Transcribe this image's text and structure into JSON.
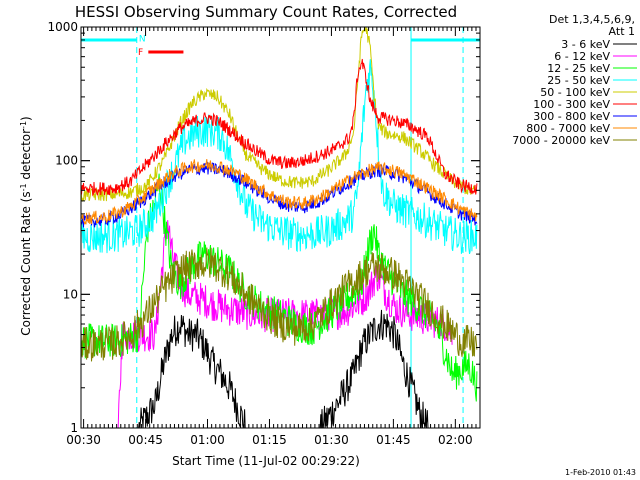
{
  "chart_data": {
    "type": "line",
    "title": "HESSI Observing Summary Count Rates, Corrected",
    "xlabel": "Start Time (11-Jul-02 00:29:22)",
    "ylabel": "Corrected Count Rate (s⁻¹ detector⁻¹)",
    "ylabel_parts": [
      "Corrected Count Rate (s",
      "-1",
      " detector",
      "-1",
      ")"
    ],
    "x_unit": "minutes since 00:29:22",
    "x_range": [
      0,
      96.6
    ],
    "y_scale": "log",
    "y_range": [
      1,
      1000
    ],
    "x_ticks": [
      {
        "label": "00:30",
        "value": 0.63
      },
      {
        "label": "00:45",
        "value": 15.63
      },
      {
        "label": "01:00",
        "value": 30.63
      },
      {
        "label": "01:15",
        "value": 45.63
      },
      {
        "label": "01:30",
        "value": 60.63
      },
      {
        "label": "01:45",
        "value": 75.63
      },
      {
        "label": "02:00",
        "value": 90.63
      }
    ],
    "y_ticks": [
      {
        "label": "1",
        "value": 1
      },
      {
        "label": "10",
        "value": 10
      },
      {
        "label": "100",
        "value": 100
      },
      {
        "label": "1000",
        "value": 1000
      }
    ],
    "legend_header": [
      "Det 1,3,4,5,6,9,",
      "Att 1"
    ],
    "series": [
      {
        "name": "3 - 6 keV",
        "color": "#000000",
        "points": [
          [
            0,
            1
          ],
          [
            10,
            1
          ],
          [
            14,
            1
          ],
          [
            18,
            1.5
          ],
          [
            20,
            3
          ],
          [
            22,
            5
          ],
          [
            24,
            6
          ],
          [
            26,
            5
          ],
          [
            28,
            5
          ],
          [
            30,
            4
          ],
          [
            32,
            3
          ],
          [
            34,
            2.5
          ],
          [
            36,
            2
          ],
          [
            38,
            1.4
          ],
          [
            40,
            1
          ],
          [
            52,
            1
          ],
          [
            58,
            1
          ],
          [
            62,
            1.5
          ],
          [
            66,
            2.5
          ],
          [
            68,
            4
          ],
          [
            70,
            5
          ],
          [
            72,
            6
          ],
          [
            74,
            6
          ],
          [
            76,
            5
          ],
          [
            78,
            3
          ],
          [
            80,
            2
          ],
          [
            82,
            1.3
          ],
          [
            84,
            1
          ],
          [
            96,
            1
          ]
        ]
      },
      {
        "name": "6 - 12 keV",
        "color": "#ff00ff",
        "points": [
          [
            0,
            1
          ],
          [
            9,
            1
          ],
          [
            10,
            5
          ],
          [
            14,
            5
          ],
          [
            18,
            5
          ],
          [
            20,
            20
          ],
          [
            21,
            35
          ],
          [
            22,
            20
          ],
          [
            24,
            12
          ],
          [
            26,
            10
          ],
          [
            30,
            9
          ],
          [
            34,
            8
          ],
          [
            38,
            7.5
          ],
          [
            42,
            7
          ],
          [
            50,
            7
          ],
          [
            58,
            7
          ],
          [
            64,
            7.5
          ],
          [
            68,
            9
          ],
          [
            70,
            11
          ],
          [
            71,
            13
          ],
          [
            72,
            14
          ],
          [
            74,
            10
          ],
          [
            76,
            8
          ],
          [
            80,
            7
          ],
          [
            84,
            6.5
          ],
          [
            88,
            6
          ],
          [
            90,
            5
          ]
        ]
      },
      {
        "name": "12 - 25 keV",
        "color": "#00ff00",
        "points": [
          [
            0,
            4.5
          ],
          [
            10,
            4.5
          ],
          [
            14,
            5
          ],
          [
            16,
            30
          ],
          [
            18,
            50
          ],
          [
            19,
            70
          ],
          [
            20,
            40
          ],
          [
            22,
            15
          ],
          [
            24,
            12
          ],
          [
            28,
            18
          ],
          [
            30,
            20
          ],
          [
            32,
            18
          ],
          [
            36,
            15
          ],
          [
            40,
            10
          ],
          [
            44,
            8
          ],
          [
            48,
            7
          ],
          [
            52,
            6
          ],
          [
            56,
            5.5
          ],
          [
            60,
            7
          ],
          [
            64,
            9
          ],
          [
            68,
            12
          ],
          [
            70,
            25
          ],
          [
            71,
            30
          ],
          [
            72,
            20
          ],
          [
            74,
            15
          ],
          [
            78,
            10
          ],
          [
            82,
            8
          ],
          [
            86,
            6
          ],
          [
            90,
            2.5
          ],
          [
            94,
            3
          ],
          [
            96,
            2
          ]
        ]
      },
      {
        "name": "25 - 50 keV",
        "color": "#00ffff",
        "points": [
          [
            0,
            27
          ],
          [
            5,
            27
          ],
          [
            10,
            28
          ],
          [
            14,
            30
          ],
          [
            18,
            40
          ],
          [
            22,
            80
          ],
          [
            25,
            140
          ],
          [
            28,
            165
          ],
          [
            31,
            170
          ],
          [
            34,
            155
          ],
          [
            36,
            110
          ],
          [
            38,
            70
          ],
          [
            40,
            45
          ],
          [
            44,
            34
          ],
          [
            48,
            30
          ],
          [
            52,
            28
          ],
          [
            56,
            28
          ],
          [
            60,
            30
          ],
          [
            64,
            35
          ],
          [
            66,
            40
          ],
          [
            67,
            60
          ],
          [
            68,
            150
          ],
          [
            69,
            340
          ],
          [
            70,
            500
          ],
          [
            71,
            320
          ],
          [
            72,
            120
          ],
          [
            73,
            60
          ],
          [
            76,
            45
          ],
          [
            80,
            40
          ],
          [
            84,
            35
          ],
          [
            88,
            30
          ],
          [
            92,
            27
          ],
          [
            96,
            27
          ]
        ]
      },
      {
        "name": "50 - 100 keV",
        "color": "#cccc00",
        "points": [
          [
            0,
            55
          ],
          [
            8,
            56
          ],
          [
            12,
            58
          ],
          [
            16,
            65
          ],
          [
            20,
            100
          ],
          [
            24,
            190
          ],
          [
            27,
            270
          ],
          [
            30,
            320
          ],
          [
            33,
            300
          ],
          [
            36,
            220
          ],
          [
            38,
            150
          ],
          [
            40,
            110
          ],
          [
            44,
            85
          ],
          [
            48,
            72
          ],
          [
            52,
            68
          ],
          [
            56,
            70
          ],
          [
            60,
            85
          ],
          [
            64,
            110
          ],
          [
            66,
            160
          ],
          [
            67,
            400
          ],
          [
            68,
            900
          ],
          [
            69,
            1000
          ],
          [
            70,
            700
          ],
          [
            71,
            300
          ],
          [
            72,
            180
          ],
          [
            74,
            160
          ],
          [
            78,
            150
          ],
          [
            82,
            120
          ],
          [
            86,
            90
          ],
          [
            90,
            70
          ],
          [
            94,
            60
          ],
          [
            96,
            58
          ]
        ]
      },
      {
        "name": "100 - 300 keV",
        "color": "#ff0000",
        "points": [
          [
            0,
            62
          ],
          [
            8,
            62
          ],
          [
            12,
            70
          ],
          [
            16,
            95
          ],
          [
            20,
            130
          ],
          [
            24,
            175
          ],
          [
            28,
            200
          ],
          [
            31,
            210
          ],
          [
            34,
            190
          ],
          [
            38,
            150
          ],
          [
            42,
            120
          ],
          [
            46,
            100
          ],
          [
            50,
            95
          ],
          [
            54,
            100
          ],
          [
            58,
            110
          ],
          [
            62,
            125
          ],
          [
            65,
            150
          ],
          [
            66,
            200
          ],
          [
            67,
            450
          ],
          [
            68,
            550
          ],
          [
            69,
            420
          ],
          [
            70,
            280
          ],
          [
            72,
            210
          ],
          [
            76,
            200
          ],
          [
            80,
            180
          ],
          [
            84,
            150
          ],
          [
            88,
            80
          ],
          [
            92,
            65
          ],
          [
            96,
            62
          ]
        ]
      },
      {
        "name": "300 - 800 keV",
        "color": "#0000ff",
        "points": [
          [
            0,
            35
          ],
          [
            6,
            36
          ],
          [
            10,
            40
          ],
          [
            14,
            48
          ],
          [
            18,
            60
          ],
          [
            22,
            75
          ],
          [
            26,
            85
          ],
          [
            30,
            88
          ],
          [
            34,
            85
          ],
          [
            38,
            75
          ],
          [
            42,
            62
          ],
          [
            46,
            52
          ],
          [
            50,
            46
          ],
          [
            54,
            45
          ],
          [
            58,
            50
          ],
          [
            62,
            60
          ],
          [
            66,
            72
          ],
          [
            70,
            82
          ],
          [
            72,
            85
          ],
          [
            76,
            80
          ],
          [
            80,
            70
          ],
          [
            84,
            58
          ],
          [
            88,
            48
          ],
          [
            92,
            40
          ],
          [
            96,
            36
          ]
        ]
      },
      {
        "name": "800 - 7000 keV",
        "color": "#ff8800",
        "points": [
          [
            0,
            37
          ],
          [
            6,
            38
          ],
          [
            10,
            42
          ],
          [
            14,
            50
          ],
          [
            18,
            64
          ],
          [
            22,
            80
          ],
          [
            26,
            90
          ],
          [
            30,
            93
          ],
          [
            34,
            90
          ],
          [
            38,
            80
          ],
          [
            42,
            66
          ],
          [
            46,
            55
          ],
          [
            50,
            49
          ],
          [
            54,
            48
          ],
          [
            58,
            53
          ],
          [
            62,
            63
          ],
          [
            66,
            75
          ],
          [
            70,
            85
          ],
          [
            72,
            88
          ],
          [
            76,
            84
          ],
          [
            80,
            74
          ],
          [
            84,
            62
          ],
          [
            88,
            52
          ],
          [
            92,
            43
          ],
          [
            96,
            38
          ]
        ]
      },
      {
        "name": "7000 - 20000 keV",
        "color": "#808000",
        "points": [
          [
            0,
            4.2
          ],
          [
            8,
            4.3
          ],
          [
            12,
            5
          ],
          [
            16,
            7
          ],
          [
            20,
            11
          ],
          [
            24,
            15
          ],
          [
            28,
            17
          ],
          [
            32,
            17
          ],
          [
            36,
            14
          ],
          [
            40,
            10
          ],
          [
            44,
            7.5
          ],
          [
            48,
            6
          ],
          [
            52,
            5.5
          ],
          [
            56,
            6
          ],
          [
            60,
            8
          ],
          [
            64,
            11
          ],
          [
            68,
            14
          ],
          [
            70,
            16
          ],
          [
            72,
            16
          ],
          [
            76,
            14
          ],
          [
            80,
            11
          ],
          [
            84,
            8
          ],
          [
            88,
            6
          ],
          [
            92,
            4.5
          ],
          [
            96,
            4.2
          ]
        ]
      }
    ],
    "night_bars": [
      {
        "x": [
          0,
          13.5
        ],
        "y": 800
      },
      {
        "x": [
          79.9,
          96.6
        ],
        "y": 800
      }
    ],
    "flag_labels": [
      {
        "text": "N",
        "x": 14.0,
        "y": 820,
        "color": "#00ffff"
      },
      {
        "text": "F",
        "x": 13.8,
        "y": 650,
        "color": "#ff0000"
      }
    ],
    "flare_bar": {
      "x": [
        16.3,
        24.8
      ],
      "y": 650
    },
    "vertical_lines": [
      {
        "value": 0,
        "style": "solid"
      },
      {
        "value": 13.5,
        "style": "dashed"
      },
      {
        "value": 79.9,
        "style": "solid"
      },
      {
        "value": 92.5,
        "style": "dashed"
      }
    ],
    "legend_position": "right"
  },
  "footer": {
    "timestamp": "1-Feb-2010 01:43"
  }
}
